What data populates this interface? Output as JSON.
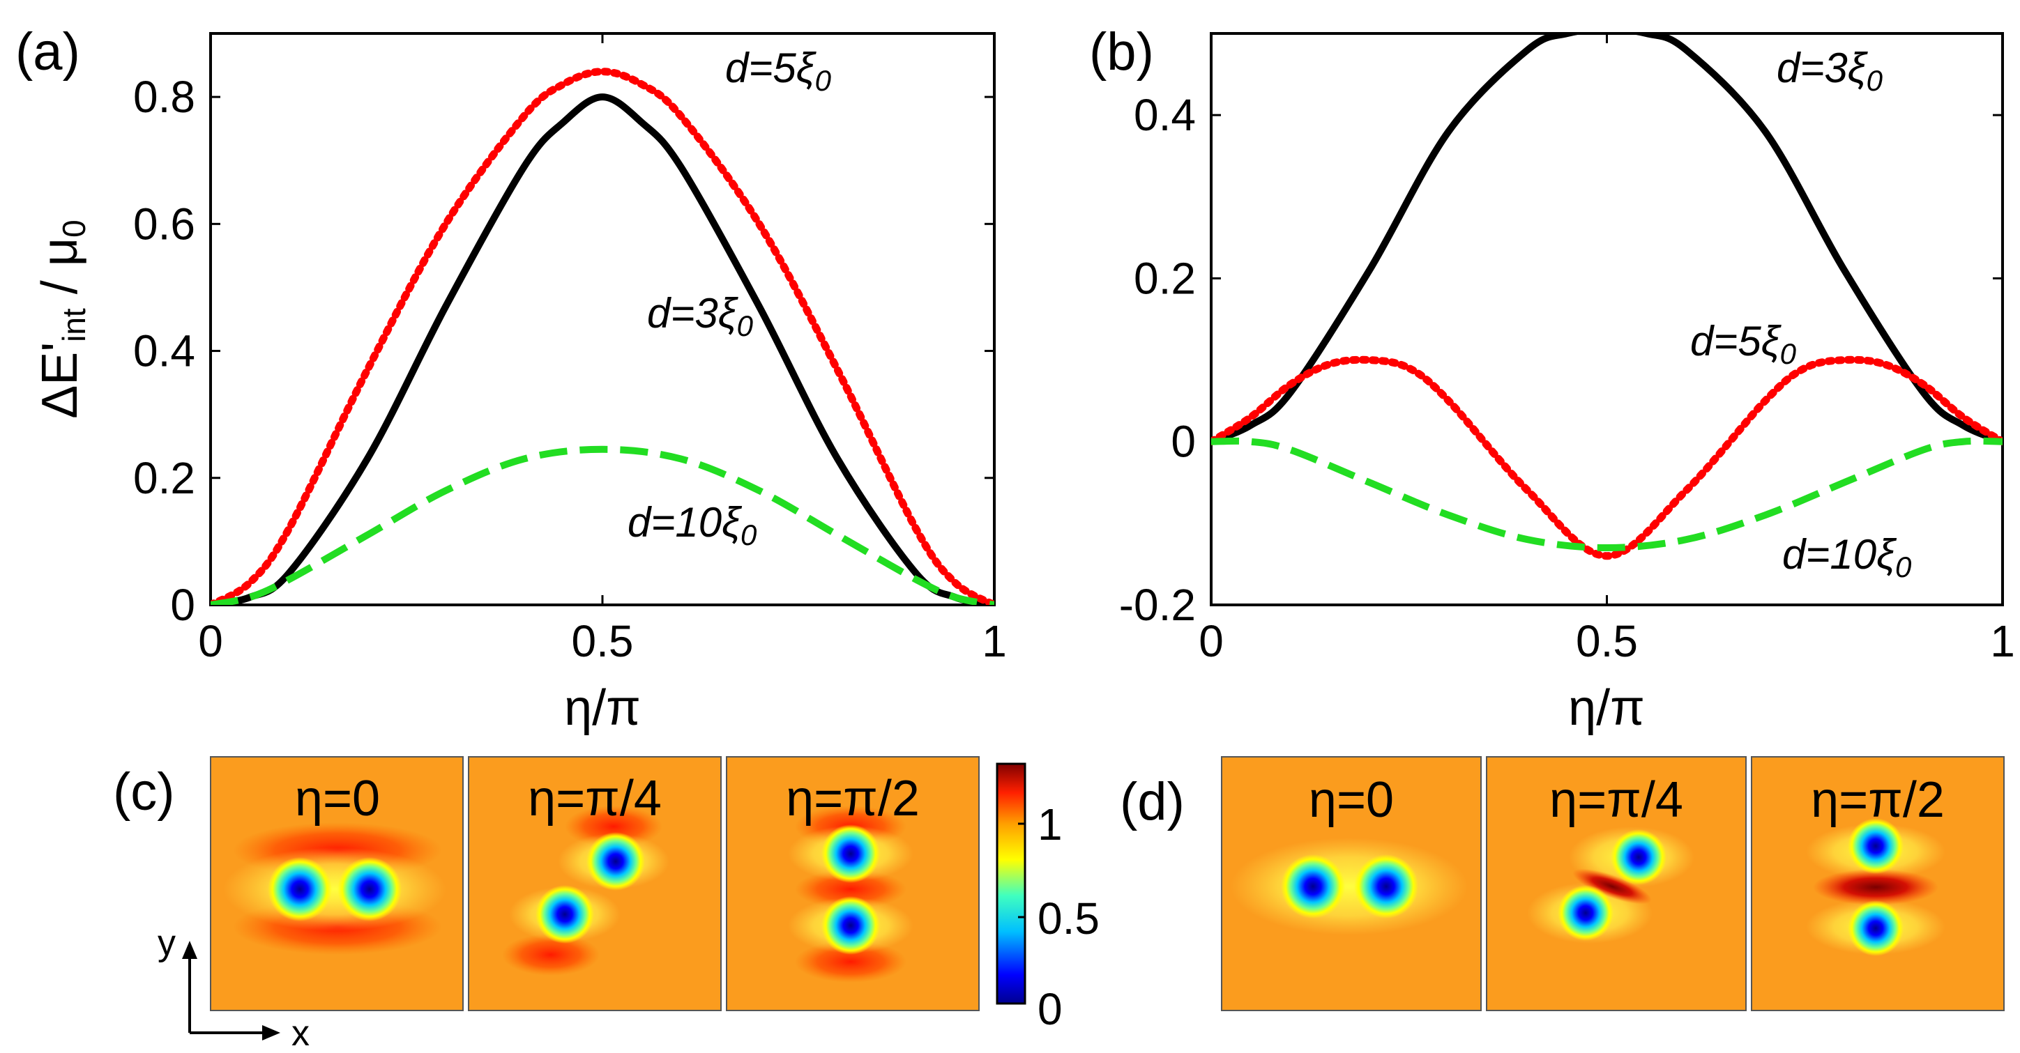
{
  "chart_data": [
    {
      "panel": "(a)",
      "type": "line",
      "xlabel": "η/π",
      "ylabel_main": "ΔE'",
      "ylabel_sub": "int",
      "ylabel_rest": " / μ",
      "ylabel_sub2": "0",
      "xlim": [
        0,
        1
      ],
      "ylim": [
        0,
        0.9
      ],
      "xticks": [
        "0",
        "0.5",
        "1"
      ],
      "yticks": [
        "0",
        "0.2",
        "0.4",
        "0.6",
        "0.8"
      ],
      "series": [
        {
          "name": "d=3ξ0",
          "style": "solid",
          "color": "#000000",
          "x": [
            0,
            0.05,
            0.1,
            0.2,
            0.3,
            0.4,
            0.45,
            0.5,
            0.55,
            0.6,
            0.7,
            0.8,
            0.9,
            0.95,
            1
          ],
          "y": [
            0,
            0.012,
            0.05,
            0.23,
            0.47,
            0.69,
            0.76,
            0.8,
            0.76,
            0.69,
            0.47,
            0.23,
            0.05,
            0.012,
            0
          ]
        },
        {
          "name": "d=5ξ0",
          "style": "dotted",
          "color": "#ff0000",
          "x": [
            0,
            0.05,
            0.1,
            0.2,
            0.3,
            0.4,
            0.45,
            0.5,
            0.55,
            0.6,
            0.7,
            0.8,
            0.9,
            0.95,
            1
          ],
          "y": [
            0,
            0.035,
            0.12,
            0.37,
            0.6,
            0.77,
            0.82,
            0.84,
            0.82,
            0.77,
            0.6,
            0.37,
            0.12,
            0.035,
            0
          ]
        },
        {
          "name": "d=10ξ0",
          "style": "dashed",
          "color": "#22dd22",
          "x": [
            0,
            0.05,
            0.1,
            0.2,
            0.3,
            0.4,
            0.5,
            0.6,
            0.7,
            0.8,
            0.9,
            0.95,
            1
          ],
          "y": [
            0,
            0.012,
            0.04,
            0.11,
            0.18,
            0.23,
            0.245,
            0.23,
            0.18,
            0.11,
            0.04,
            0.012,
            0
          ]
        }
      ],
      "annotations": [
        {
          "base": "d=3ξ",
          "sub": "0",
          "color": "#000000"
        },
        {
          "base": "d=5ξ",
          "sub": "0",
          "color": "#ff0000"
        },
        {
          "base": "d=10ξ",
          "sub": "0",
          "color": "#22dd22"
        }
      ]
    },
    {
      "panel": "(b)",
      "type": "line",
      "xlabel": "η/π",
      "xlim": [
        0,
        1
      ],
      "ylim": [
        -0.2,
        0.5
      ],
      "xticks": [
        "0",
        "0.5",
        "1"
      ],
      "yticks": [
        "-0.2",
        "0",
        "0.2",
        "0.4"
      ],
      "series": [
        {
          "name": "d=3ξ0",
          "style": "solid",
          "color": "#000000",
          "x": [
            0,
            0.05,
            0.1,
            0.2,
            0.3,
            0.4,
            0.45,
            0.5,
            0.55,
            0.6,
            0.7,
            0.8,
            0.9,
            0.95,
            1
          ],
          "y": [
            0,
            0.02,
            0.06,
            0.21,
            0.38,
            0.48,
            0.5,
            0.505,
            0.5,
            0.48,
            0.38,
            0.21,
            0.06,
            0.02,
            0
          ]
        },
        {
          "name": "d=5ξ0",
          "style": "dotted",
          "color": "#ff0000",
          "x": [
            0,
            0.05,
            0.1,
            0.15,
            0.2,
            0.25,
            0.3,
            0.4,
            0.5,
            0.6,
            0.7,
            0.75,
            0.8,
            0.85,
            0.9,
            0.95,
            1
          ],
          "y": [
            0,
            0.03,
            0.07,
            0.095,
            0.1,
            0.09,
            0.05,
            -0.06,
            -0.14,
            -0.06,
            0.05,
            0.09,
            0.1,
            0.095,
            0.07,
            0.03,
            0
          ]
        },
        {
          "name": "d=10ξ0",
          "style": "dashed",
          "color": "#22dd22",
          "x": [
            0,
            0.05,
            0.1,
            0.2,
            0.3,
            0.4,
            0.5,
            0.6,
            0.7,
            0.8,
            0.9,
            0.95,
            1
          ],
          "y": [
            0,
            0.0,
            -0.01,
            -0.05,
            -0.09,
            -0.12,
            -0.13,
            -0.12,
            -0.09,
            -0.05,
            -0.01,
            0.0,
            0
          ]
        }
      ],
      "annotations": [
        {
          "base": "d=3ξ",
          "sub": "0",
          "color": "#000000"
        },
        {
          "base": "d=5ξ",
          "sub": "0",
          "color": "#ff0000"
        },
        {
          "base": "d=10ξ",
          "sub": "0",
          "color": "#22dd22"
        }
      ]
    },
    {
      "panel": "(c)",
      "type": "heatmap",
      "titles": [
        "η=0",
        "η=π/4",
        "η=π/2"
      ],
      "colorbar_ticks": [
        "0",
        "0.5",
        "1"
      ],
      "axis_labels": {
        "x": "x",
        "y": "y"
      }
    },
    {
      "panel": "(d)",
      "type": "heatmap",
      "titles": [
        "η=0",
        "η=π/4",
        "η=π/2"
      ]
    }
  ]
}
